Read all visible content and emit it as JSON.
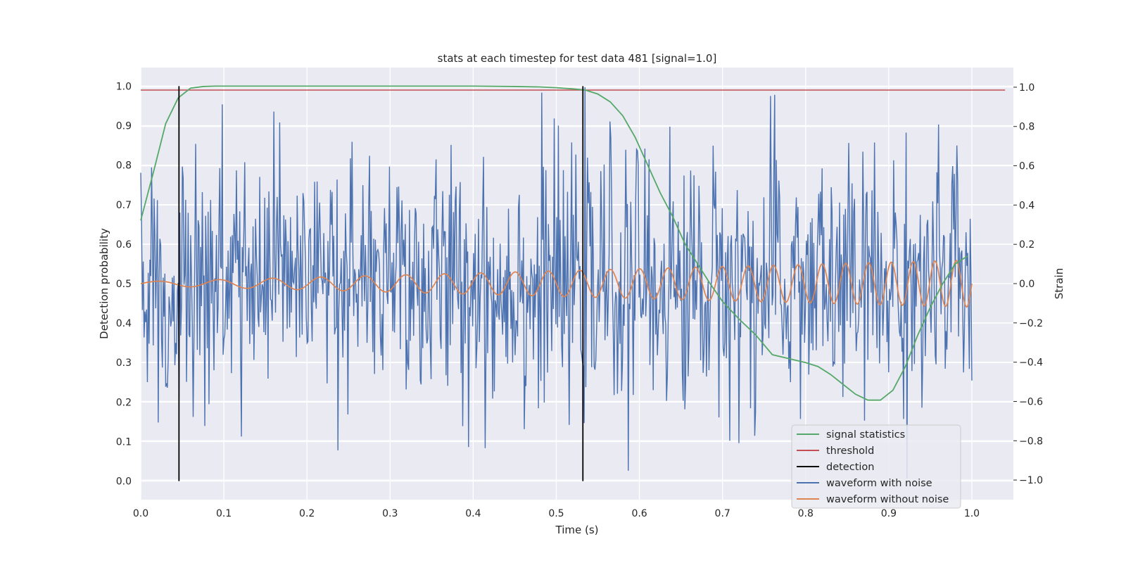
{
  "chart_data": {
    "type": "line",
    "title": "stats at each timestep for test data 481 [signal=1.0]",
    "xlabel": "Time (s)",
    "ylabel_left": "Detection probability",
    "ylabel_right": "Strain",
    "xlim": [
      0.0,
      1.05
    ],
    "ylim_left": [
      -0.047,
      1.047
    ],
    "ylim_right": [
      -1.1,
      1.1
    ],
    "x_ticks": [
      "0.0",
      "0.1",
      "0.2",
      "0.3",
      "0.4",
      "0.5",
      "0.6",
      "0.7",
      "0.8",
      "0.9",
      "1.0"
    ],
    "y_left_ticks": [
      "0.0",
      "0.1",
      "0.2",
      "0.3",
      "0.4",
      "0.5",
      "0.6",
      "0.7",
      "0.8",
      "0.9",
      "1.0"
    ],
    "y_right_ticks": [
      "−1.0",
      "−0.8",
      "−0.6",
      "−0.4",
      "−0.2",
      "0.0",
      "0.2",
      "0.4",
      "0.6",
      "0.8",
      "1.0"
    ],
    "grid": true,
    "legend_position": "lower-right",
    "series": [
      {
        "name": "signal statistics",
        "axis": "left",
        "color": "#55a868",
        "x": [
          0.0,
          0.015,
          0.03,
          0.045,
          0.06,
          0.075,
          0.09,
          0.12,
          0.2,
          0.3,
          0.4,
          0.45,
          0.48,
          0.5,
          0.52,
          0.535,
          0.55,
          0.565,
          0.58,
          0.595,
          0.61,
          0.625,
          0.64,
          0.655,
          0.67,
          0.685,
          0.7,
          0.72,
          0.74,
          0.76,
          0.78,
          0.8,
          0.815,
          0.83,
          0.845,
          0.86,
          0.875,
          0.89,
          0.905,
          0.92,
          0.935,
          0.95,
          0.965,
          0.98,
          0.995
        ],
        "y": [
          0.66,
          0.78,
          0.905,
          0.97,
          0.995,
          0.999,
          1.0,
          1.0,
          1.0,
          1.0,
          1.0,
          0.999,
          0.998,
          0.996,
          0.993,
          0.99,
          0.98,
          0.96,
          0.925,
          0.87,
          0.8,
          0.73,
          0.67,
          0.6,
          0.55,
          0.5,
          0.455,
          0.41,
          0.37,
          0.32,
          0.31,
          0.3,
          0.29,
          0.27,
          0.245,
          0.22,
          0.205,
          0.205,
          0.23,
          0.29,
          0.37,
          0.44,
          0.5,
          0.55,
          0.57
        ]
      },
      {
        "name": "threshold",
        "axis": "left",
        "color": "#c44e52",
        "x": [
          0.0,
          1.04
        ],
        "y": [
          0.99,
          0.99
        ]
      },
      {
        "name": "detection",
        "axis": "left",
        "color": "#000000",
        "segments": [
          {
            "x": 0.046,
            "y_start": 0.0,
            "y_end": 1.0
          },
          {
            "x": 0.532,
            "y_start": 0.0,
            "y_end": 1.0
          }
        ]
      },
      {
        "name": "waveform with noise",
        "axis": "right",
        "color": "#4c72b0",
        "x_range": [
          0.0,
          1.0
        ],
        "n_points": 1000,
        "y_range": [
          -1.0,
          1.0
        ],
        "approx_std": 0.32
      },
      {
        "name": "waveform without noise",
        "axis": "right",
        "color": "#dd8452",
        "x_range": [
          0.0,
          1.0
        ],
        "chirp": {
          "f_start_hz": 12,
          "f_end_hz": 40,
          "amp_start": 0.01,
          "amp_end": 0.12
        }
      }
    ]
  }
}
